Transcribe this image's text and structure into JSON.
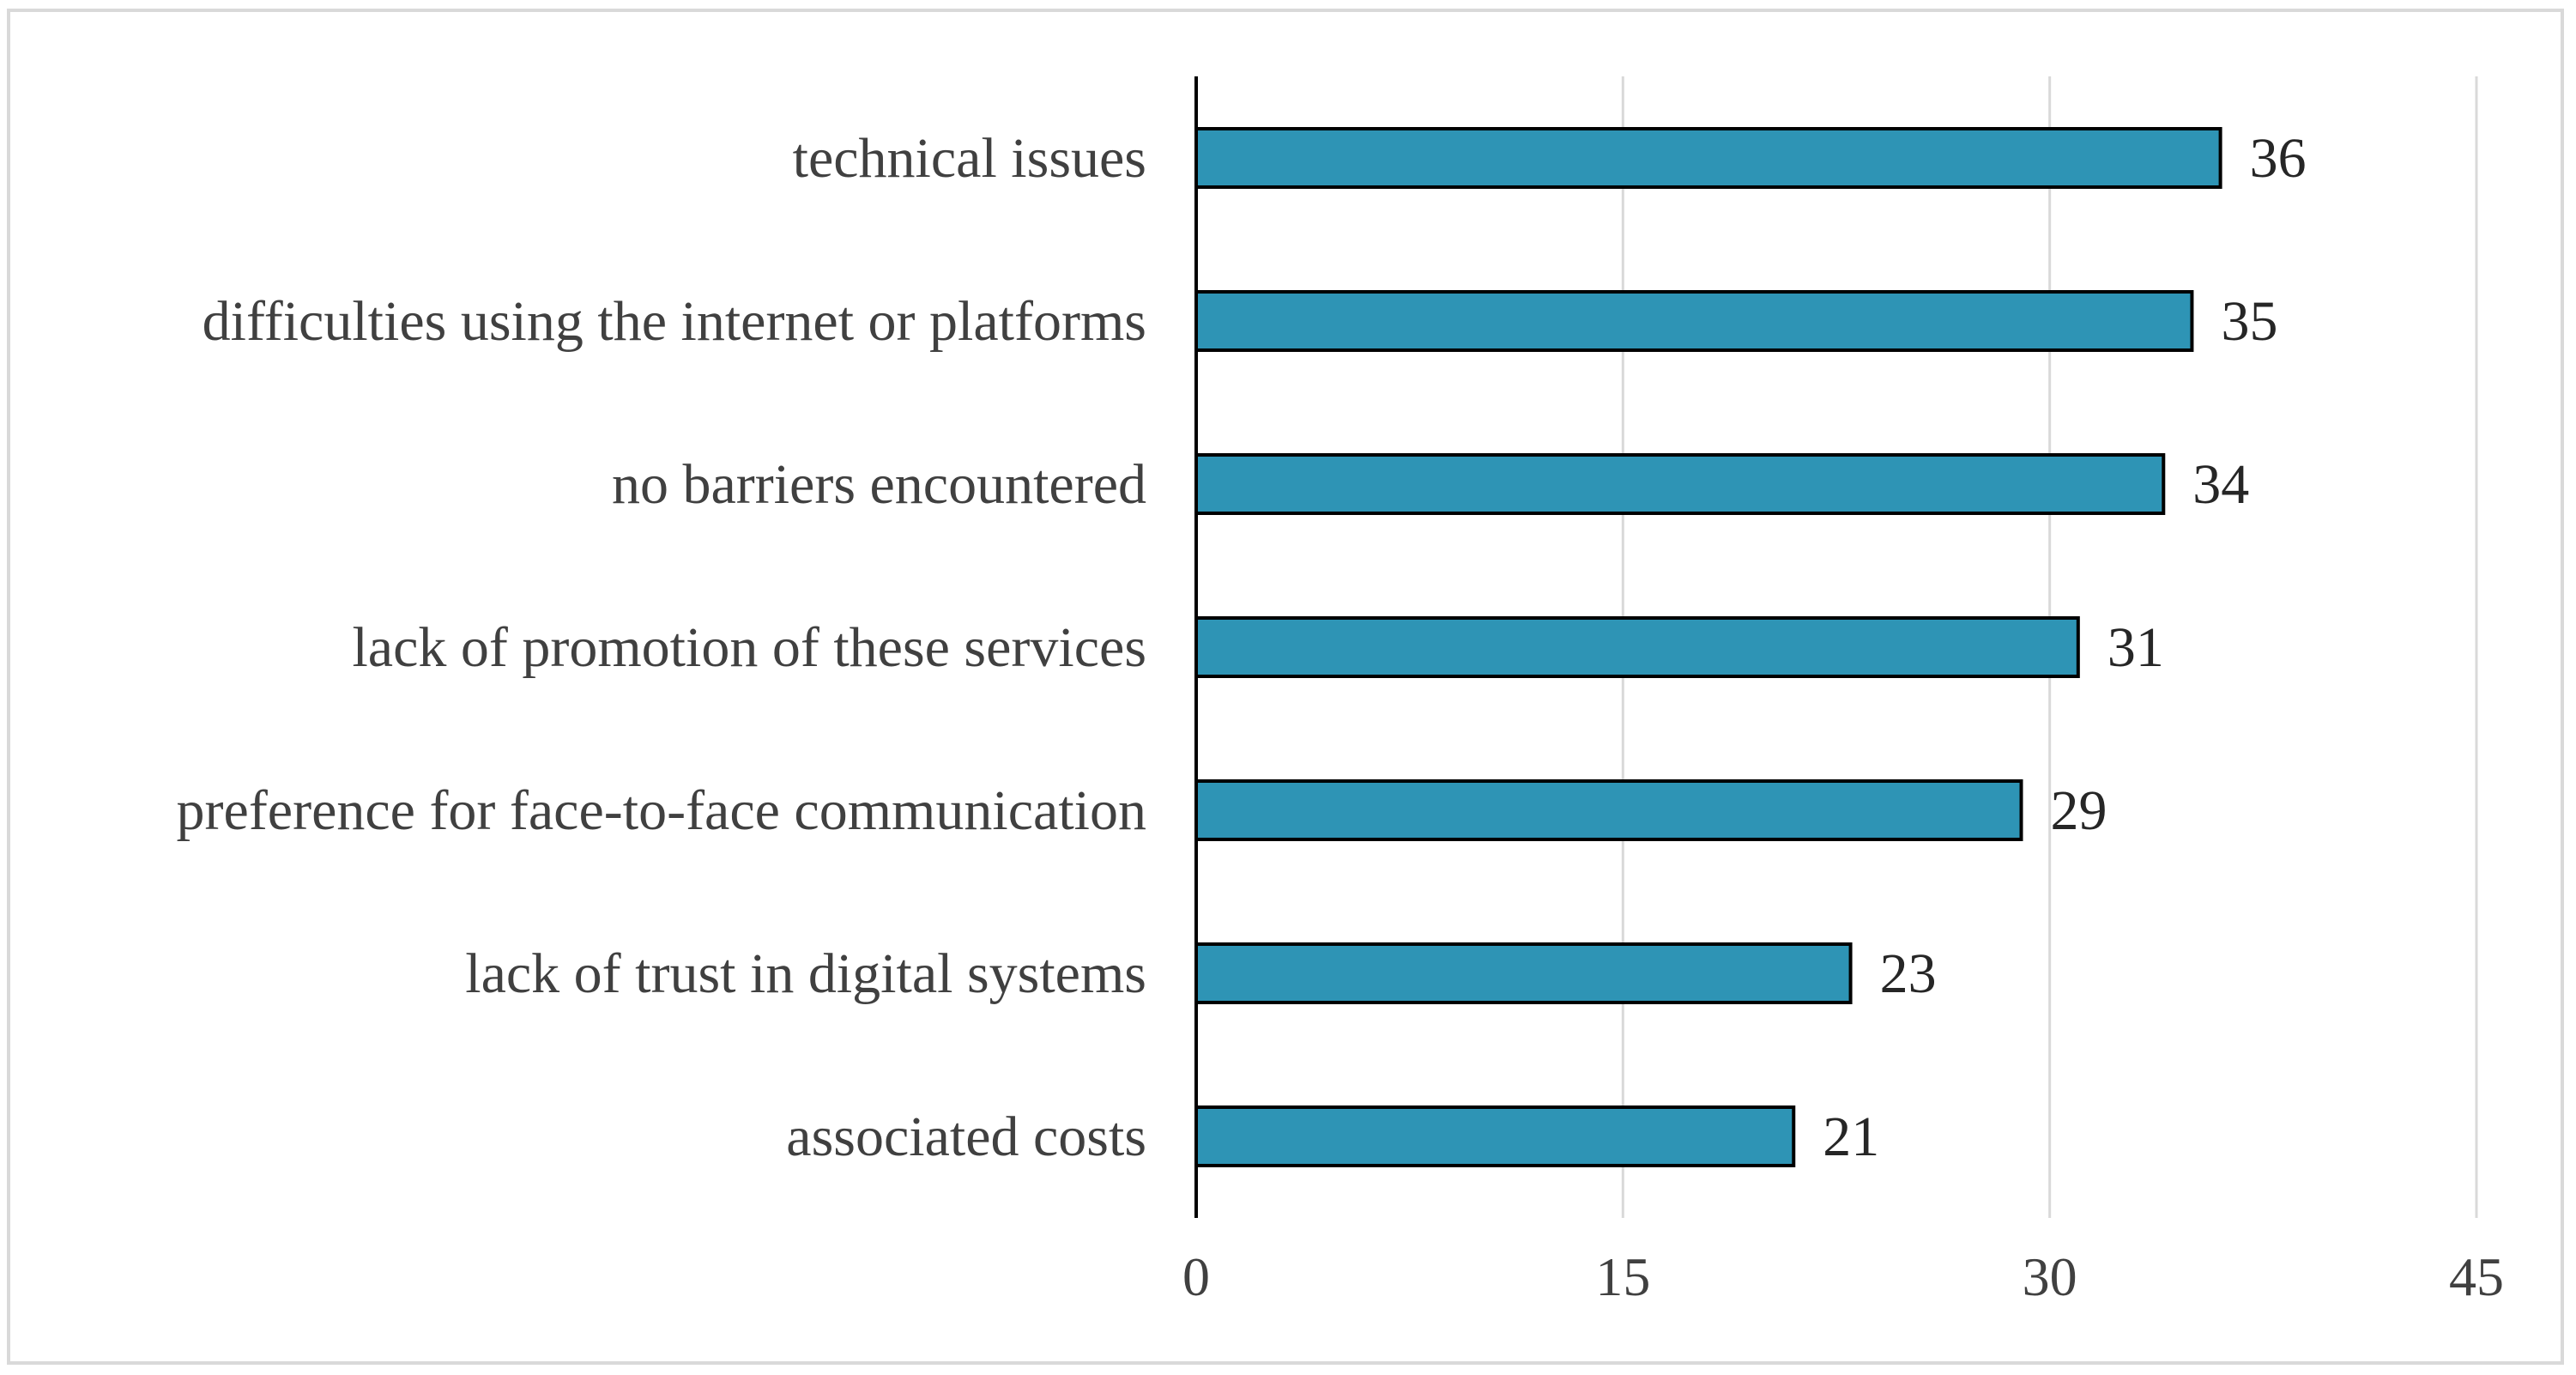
{
  "chart_data": {
    "type": "bar",
    "orientation": "horizontal",
    "categories": [
      "technical issues",
      "difficulties using the internet or platforms",
      "no barriers encountered",
      "lack of promotion of these services",
      "preference for face-to-face communication",
      "lack of trust in digital systems",
      "associated costs"
    ],
    "values": [
      36,
      35,
      34,
      31,
      29,
      23,
      21
    ],
    "xlim": [
      0,
      45
    ],
    "xticks": [
      0,
      15,
      30,
      45
    ],
    "xtick_labels": [
      "0",
      "15",
      "30",
      "45"
    ],
    "title": "",
    "xlabel": "",
    "ylabel": "",
    "grid": "vertical",
    "legend": "none",
    "data_labels": true,
    "colors": {
      "bar_fill": "#2e94b5",
      "bar_stroke": "#000000",
      "grid": "#d9d9d9",
      "axis": "#000000"
    }
  }
}
